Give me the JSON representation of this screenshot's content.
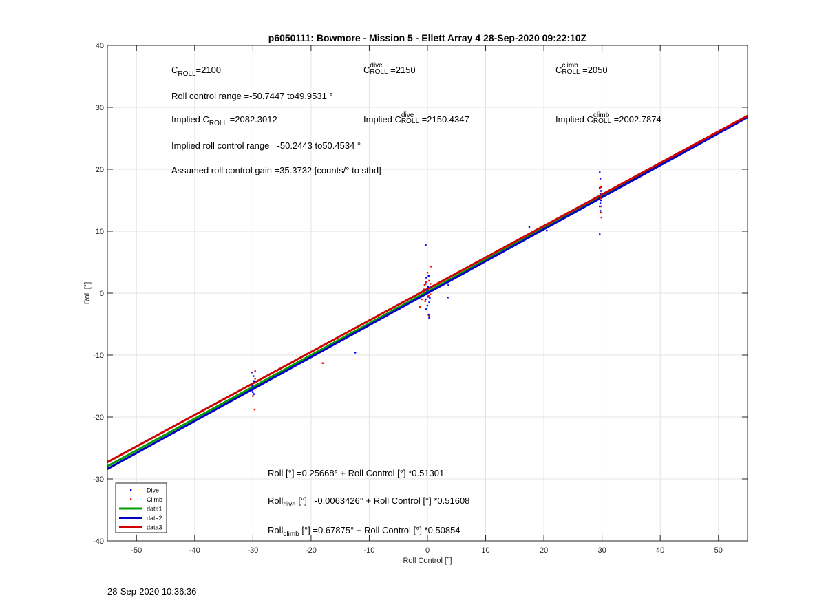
{
  "chart_data": {
    "type": "scatter",
    "title": "p6050111: Bowmore - Mission 5 - Ellett Array 4 28-Sep-2020 09:22:10Z",
    "xlabel": "Roll Control [°]",
    "ylabel": "Roll [°]",
    "xlim": [
      -55,
      55
    ],
    "ylim": [
      -40,
      40
    ],
    "xticks": [
      -50,
      -40,
      -30,
      -20,
      -10,
      0,
      10,
      20,
      30,
      40,
      50
    ],
    "yticks": [
      -40,
      -30,
      -20,
      -10,
      0,
      10,
      20,
      30,
      40
    ],
    "grid": true,
    "legend_position": "bottom-left",
    "series": [
      {
        "name": "Dive",
        "kind": "points",
        "color": "#0000ff",
        "points": [
          [
            -30.2,
            -12.8
          ],
          [
            -29.9,
            -13.4
          ],
          [
            -29.8,
            -14.2
          ],
          [
            -30.1,
            -15.0
          ],
          [
            -29.9,
            -15.5
          ],
          [
            -30.0,
            -16.0
          ],
          [
            -29.8,
            -16.3
          ],
          [
            -30.1,
            -15.7
          ],
          [
            -12.4,
            -9.6
          ],
          [
            -4.2,
            -2.3
          ],
          [
            -0.3,
            7.8
          ],
          [
            -0.2,
            2.5
          ],
          [
            0.2,
            2.8
          ],
          [
            -0.3,
            1.5
          ],
          [
            0.1,
            1.0
          ],
          [
            -0.1,
            0.5
          ],
          [
            0.2,
            0.2
          ],
          [
            -0.2,
            -0.2
          ],
          [
            0.1,
            -0.6
          ],
          [
            -0.3,
            -1.0
          ],
          [
            0.3,
            -1.5
          ],
          [
            0.0,
            -2.0
          ],
          [
            -0.2,
            -2.6
          ],
          [
            0.2,
            -3.5
          ],
          [
            0.3,
            -4.0
          ],
          [
            0.4,
            -0.8
          ],
          [
            0.5,
            0.9
          ],
          [
            3.6,
            1.3
          ],
          [
            3.5,
            -0.7
          ],
          [
            17.5,
            10.7
          ],
          [
            20.5,
            10.1
          ],
          [
            29.6,
            19.5
          ],
          [
            29.7,
            18.5
          ],
          [
            29.6,
            17.0
          ],
          [
            29.8,
            16.5
          ],
          [
            29.7,
            16.0
          ],
          [
            29.6,
            15.5
          ],
          [
            29.8,
            15.0
          ],
          [
            29.7,
            14.5
          ],
          [
            29.6,
            14.0
          ],
          [
            29.7,
            13.3
          ],
          [
            29.6,
            9.5
          ]
        ]
      },
      {
        "name": "Climb",
        "kind": "points",
        "color": "#ff0000",
        "points": [
          [
            -29.6,
            -12.6
          ],
          [
            -29.6,
            -13.8
          ],
          [
            -29.7,
            -18.8
          ],
          [
            -30.0,
            -16.6
          ],
          [
            -18.0,
            -11.3
          ],
          [
            -1.3,
            -2.2
          ],
          [
            -1.0,
            -1.0
          ],
          [
            -0.6,
            0.6
          ],
          [
            -0.5,
            1.3
          ],
          [
            0.0,
            3.3
          ],
          [
            0.3,
            2.0
          ],
          [
            0.5,
            1.5
          ],
          [
            0.6,
            4.3
          ],
          [
            0.2,
            -0.4
          ],
          [
            0.4,
            0.9
          ],
          [
            -0.2,
            1.8
          ],
          [
            0.5,
            -0.2
          ],
          [
            0.3,
            -3.7
          ],
          [
            -0.4,
            -1.3
          ],
          [
            29.8,
            17.1
          ],
          [
            29.9,
            16.0
          ],
          [
            29.7,
            15.3
          ],
          [
            29.9,
            14.0
          ],
          [
            29.8,
            13.0
          ],
          [
            29.9,
            12.2
          ]
        ]
      },
      {
        "name": "data1",
        "kind": "line",
        "color": "#00a000",
        "intercept": 0.25668,
        "slope": 0.51301
      },
      {
        "name": "data2",
        "kind": "line",
        "color": "#0000c8",
        "intercept": -0.0063426,
        "slope": 0.51608
      },
      {
        "name": "data3",
        "kind": "line",
        "color": "#d00000",
        "intercept": 0.67875,
        "slope": 0.50854
      }
    ]
  },
  "annotations": {
    "c_roll": {
      "base": "C",
      "sub": "ROLL",
      "value": "=2100"
    },
    "c_roll_dive": {
      "base": "C",
      "sup": "dive",
      "sub": "ROLL",
      "value": "=2150"
    },
    "c_roll_climb": {
      "base": "C",
      "sup": "climb",
      "sub": "ROLL",
      "value": "=2050"
    },
    "roll_range": "Roll control range =-50.7447 to49.9531 °",
    "implied_c_roll": {
      "prefix": "Implied C",
      "sub": "ROLL",
      "value": "=2082.3012"
    },
    "implied_c_dive": {
      "prefix": "Implied C",
      "sup": "dive",
      "sub": "ROLL",
      "value": "=2150.4347"
    },
    "implied_c_climb": {
      "prefix": "Implied C",
      "sup": "climb",
      "sub": "ROLL",
      "value": "=2002.7874"
    },
    "implied_range": "Implied roll control range =-50.2443 to50.4534 °",
    "gain": "Assumed roll control gain =35.3732 [counts/° to stbd]",
    "fit_all": "Roll [°] =0.25668° + Roll Control [°] *0.51301",
    "fit_dive": {
      "base": "Roll",
      "sub": "dive",
      "rest": " [°] =-0.0063426° + Roll Control [°] *0.51608"
    },
    "fit_climb": {
      "base": "Roll",
      "sub": "climb",
      "rest": " [°] =0.67875° + Roll Control [°] *0.50854"
    }
  },
  "footer": {
    "timestamp": "28-Sep-2020 10:36:36"
  }
}
